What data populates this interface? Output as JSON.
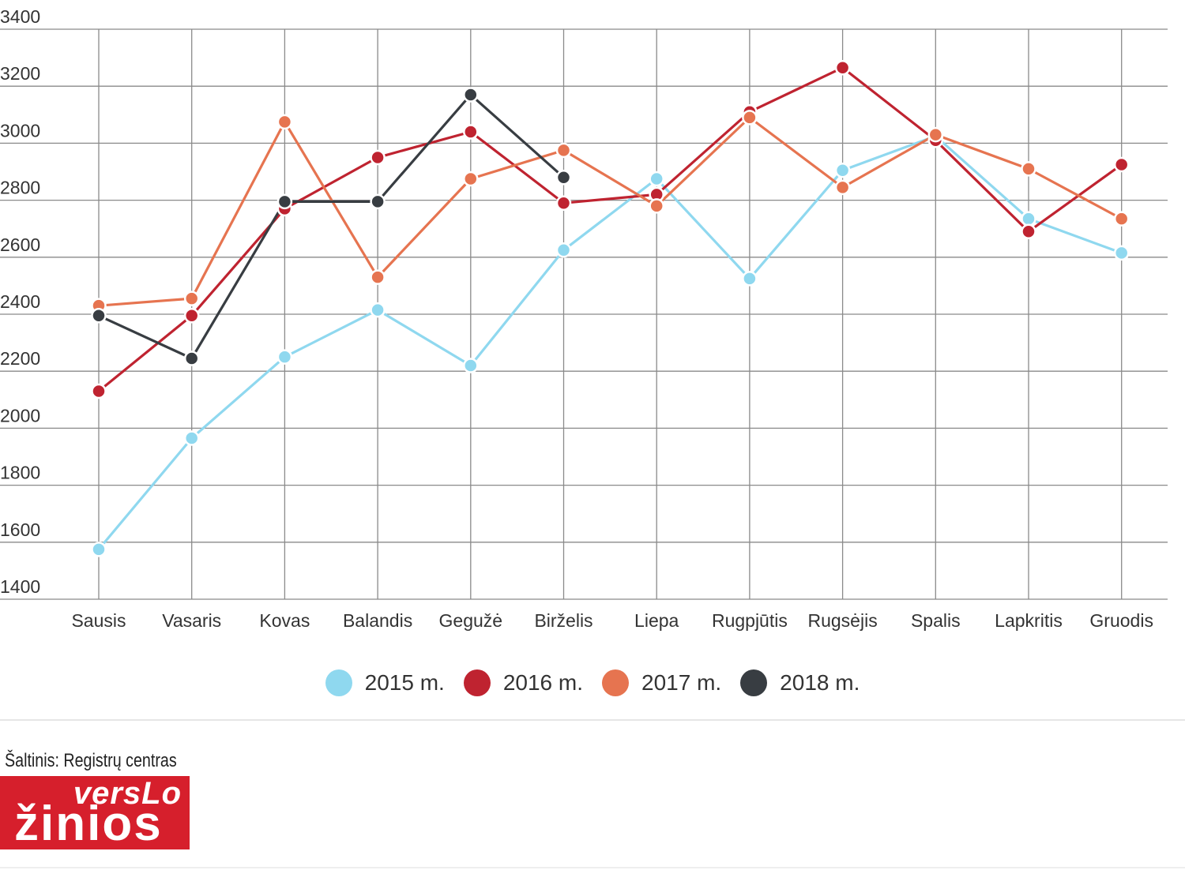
{
  "chart_data": {
    "type": "line",
    "categories": [
      "Sausis",
      "Vasaris",
      "Kovas",
      "Balandis",
      "Gegužė",
      "Birželis",
      "Liepa",
      "Rugpjūtis",
      "Rugsėjis",
      "Spalis",
      "Lapkritis",
      "Gruodis"
    ],
    "ylim": [
      1400,
      3400
    ],
    "yticks": [
      "1400",
      "1600",
      "1800",
      "2000",
      "2200",
      "2400",
      "2600",
      "2800",
      "3000",
      "3200",
      "3400"
    ],
    "grid": true,
    "legend_position": "bottom",
    "series": [
      {
        "name": "2015 m.",
        "color": "#8fd8ef",
        "values": [
          1575,
          1965,
          2250,
          2415,
          2220,
          2625,
          2875,
          2525,
          2905,
          3025,
          2735,
          2615
        ]
      },
      {
        "name": "2016 m.",
        "color": "#bf2330",
        "values": [
          2130,
          2395,
          2770,
          2950,
          3040,
          2790,
          2820,
          3110,
          3265,
          3010,
          2690,
          2925
        ]
      },
      {
        "name": "2017 m.",
        "color": "#e67450",
        "values": [
          2430,
          2455,
          3075,
          2530,
          2875,
          2975,
          2780,
          3090,
          2845,
          3030,
          2910,
          2735
        ]
      },
      {
        "name": "2018 m.",
        "color": "#383d42",
        "values": [
          2395,
          2245,
          2795,
          2795,
          3170,
          2880,
          null,
          null,
          null,
          null,
          null,
          null
        ]
      }
    ]
  },
  "footer": {
    "source": "Šaltinis: Registrų centras",
    "logo_top": "versLo",
    "logo_bottom": "žinios"
  }
}
